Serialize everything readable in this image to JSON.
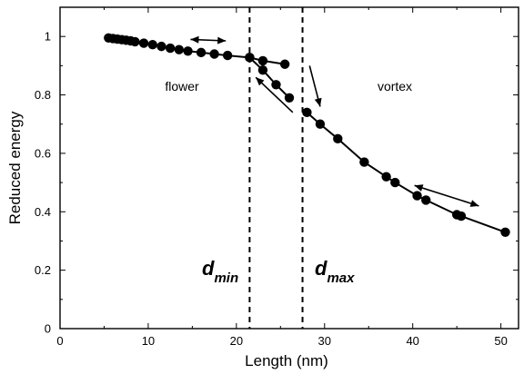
{
  "chart_data": {
    "type": "line",
    "xlabel": "Length (nm)",
    "ylabel": "Reduced energy",
    "xlim": [
      0,
      52
    ],
    "ylim": [
      0,
      1.1
    ],
    "xticks": [
      "0",
      "10",
      "20",
      "30",
      "40",
      "50"
    ],
    "yticks": [
      "0",
      "0.2",
      "0.4",
      "0.6",
      "0.8",
      "1"
    ],
    "grid": false,
    "series": [
      {
        "x": [
          5.5,
          6,
          6.5,
          7,
          7.5,
          8,
          8.5,
          9.5,
          10.5,
          11.5,
          12.5,
          13.5,
          14.5,
          16,
          17.5,
          19,
          21.5,
          23,
          25.5
        ],
        "values": [
          0.995,
          0.993,
          0.991,
          0.989,
          0.987,
          0.985,
          0.982,
          0.977,
          0.972,
          0.966,
          0.96,
          0.955,
          0.95,
          0.945,
          0.94,
          0.935,
          0.928,
          0.917,
          0.905
        ]
      },
      {
        "x": [
          21.5,
          23,
          24.5,
          26
        ],
        "values": [
          0.928,
          0.885,
          0.835,
          0.79
        ]
      },
      {
        "x": [
          28,
          29.5,
          31.5,
          34.5,
          37,
          38,
          40.5,
          41.5,
          45,
          45.5,
          50.5
        ],
        "values": [
          0.74,
          0.7,
          0.65,
          0.57,
          0.52,
          0.5,
          0.455,
          0.44,
          0.39,
          0.385,
          0.33
        ]
      }
    ],
    "annotations": {
      "flower": "flower",
      "vortex": "vortex",
      "dmin_main": "d",
      "dmin_sub": "min",
      "dmax_main": "d",
      "dmax_sub": "max",
      "dmin_x": 21.5,
      "dmax_x": 27.5
    }
  }
}
